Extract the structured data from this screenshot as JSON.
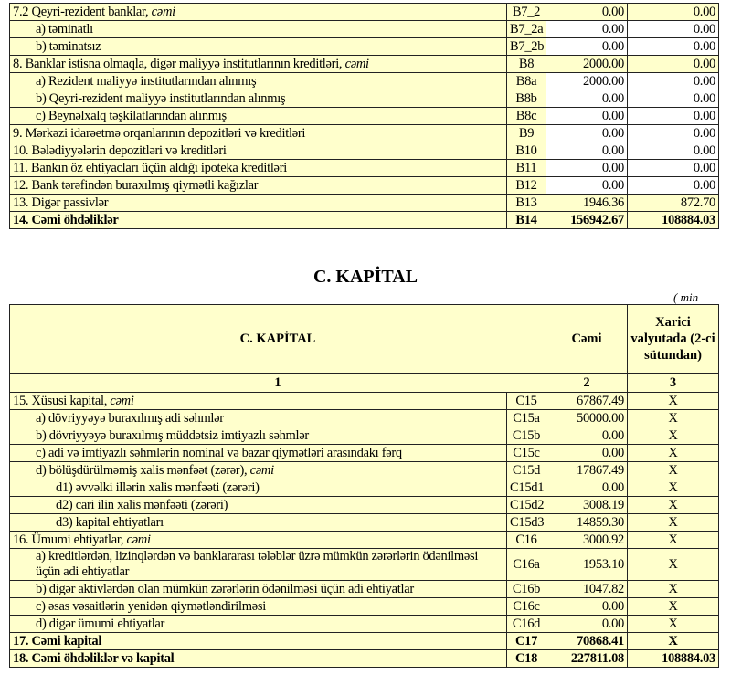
{
  "liabilities": {
    "rows": [
      {
        "label": "7.2 Qeyri-rezident banklar, ",
        "suffix": "cəmi",
        "code": "B7_2",
        "v1": "0.00",
        "v2": "0.00",
        "indent": 0,
        "white": false,
        "bold": false
      },
      {
        "label": "a) təminatlı",
        "code": "B7_2a",
        "v1": "0.00",
        "v2": "0.00",
        "indent": 1,
        "white": true,
        "bold": false
      },
      {
        "label": "b) təminatsız",
        "code": "B7_2b",
        "v1": "0.00",
        "v2": "0.00",
        "indent": 1,
        "white": true,
        "bold": false
      },
      {
        "label": "8. Banklar istisna olmaqla, digər maliyyə institutlarının kreditləri, ",
        "suffix": "cəmi",
        "code": "B8",
        "v1": "2000.00",
        "v2": "0.00",
        "indent": 0,
        "white": false,
        "bold": false
      },
      {
        "label": "a) Rezident maliyyə institutlarından alınmış",
        "code": "B8a",
        "v1": "2000.00",
        "v2": "0.00",
        "indent": 1,
        "white": true,
        "bold": false
      },
      {
        "label": "b) Qeyri-rezident maliyyə institutlarından alınmış",
        "code": "B8b",
        "v1": "0.00",
        "v2": "0.00",
        "indent": 1,
        "white": true,
        "bold": false
      },
      {
        "label": "c) Beynəlxalq təşkilatlarından alınmış",
        "code": "B8c",
        "v1": "0.00",
        "v2": "0.00",
        "indent": 1,
        "white": true,
        "bold": false
      },
      {
        "label": "9. Mərkəzi idarəetmə orqanlarının depozitləri və kreditləri",
        "code": "B9",
        "v1": "0.00",
        "v2": "0.00",
        "indent": 0,
        "white": true,
        "bold": false
      },
      {
        "label": "10. Bələdiyyələrin depozitləri və kreditləri",
        "code": "B10",
        "v1": "0.00",
        "v2": "0.00",
        "indent": 0,
        "white": true,
        "bold": false
      },
      {
        "label": "11. Bankın öz ehtiyacları üçün aldığı ipoteka kreditləri",
        "code": "B11",
        "v1": "0.00",
        "v2": "0.00",
        "indent": 0,
        "white": true,
        "bold": false
      },
      {
        "label": "12. Bank tərəfindən buraxılmış qiymətli kağızlar",
        "code": "B12",
        "v1": "0.00",
        "v2": "0.00",
        "indent": 0,
        "white": true,
        "bold": false
      },
      {
        "label": "13. Digər passivlər",
        "code": "B13",
        "v1": "1946.36",
        "v2": "872.70",
        "indent": 0,
        "white": false,
        "bold": false
      },
      {
        "label": "14. Cəmi öhdəliklər",
        "code": "B14",
        "v1": "156942.67",
        "v2": "108884.03",
        "indent": 0,
        "white": false,
        "bold": true
      }
    ]
  },
  "capital": {
    "section_title": "C. KAPİTAL",
    "unit_note": "( min",
    "header": {
      "col1": "C. KAPİTAL",
      "col2": "Cəmi",
      "col3": "Xarici valyutada (2-ci sütundan)",
      "num1": "1",
      "num2": "2",
      "num3": "3"
    },
    "rows": [
      {
        "label": "15. Xüsusi kapital, ",
        "suffix": "cəmi",
        "code": "C15",
        "v1": "67867.49",
        "v2": "X",
        "indent": 0,
        "bold": false
      },
      {
        "label": "a) dövriyyəyə buraxılmış adi səhmlər",
        "code": "C15a",
        "v1": "50000.00",
        "v2": "X",
        "indent": 1,
        "bold": false
      },
      {
        "label": "b) dövriyyəyə buraxılmış müddətsiz imtiyazlı səhmlər",
        "code": "C15b",
        "v1": "0.00",
        "v2": "X",
        "indent": 1,
        "bold": false
      },
      {
        "label": "c) adi və imtiyazlı səhmlərin nominal və bazar qiymətləri arasındakı fərq",
        "code": "C15c",
        "v1": "0.00",
        "v2": "X",
        "indent": 1,
        "bold": false
      },
      {
        "label": "d) bölüşdürülməmiş xalis mənfəət (zərər), ",
        "suffix": "cəmi",
        "code": "C15d",
        "v1": "17867.49",
        "v2": "X",
        "indent": 1,
        "bold": false
      },
      {
        "label": "d1) əvvəlki illərin xalis mənfəəti (zərəri)",
        "code": "C15d1",
        "v1": "0.00",
        "v2": "X",
        "indent": 2,
        "bold": false
      },
      {
        "label": "d2) cari ilin xalis mənfəəti (zərəri)",
        "code": "C15d2",
        "v1": "3008.19",
        "v2": "X",
        "indent": 2,
        "bold": false
      },
      {
        "label": "d3) kapital ehtiyatları",
        "code": "C15d3",
        "v1": "14859.30",
        "v2": "X",
        "indent": 2,
        "bold": false
      },
      {
        "label": "16. Ümumi ehtiyatlar, ",
        "suffix": "cəmi",
        "code": "C16",
        "v1": "3000.92",
        "v2": "X",
        "indent": 0,
        "bold": false
      },
      {
        "label": "a) kreditlərdən, lizinqlərdən və banklararası  tələblər üzrə mümkün zərərlərin ödənilməsi üçün adi ehtiyatlar",
        "code": "C16a",
        "v1": "1953.10",
        "v2": "X",
        "indent": 1,
        "bold": false,
        "wrap": true
      },
      {
        "label": "b) digər aktivlərdən olan mümkün zərərlərin ödənilməsi üçün adi ehtiyatlar",
        "code": "C16b",
        "v1": "1047.82",
        "v2": "X",
        "indent": 1,
        "bold": false
      },
      {
        "label": "c) əsas vəsaitlərin yenidən qiymətləndirilməsi",
        "code": "C16c",
        "v1": "0.00",
        "v2": "X",
        "indent": 1,
        "bold": false
      },
      {
        "label": "d) digər ümumi ehtiyatlar",
        "code": "C16d",
        "v1": "0.00",
        "v2": "X",
        "indent": 1,
        "bold": false
      },
      {
        "label": "17. Cəmi kapital",
        "code": "C17",
        "v1": "70868.41",
        "v2": "X",
        "indent": 0,
        "bold": true
      },
      {
        "label": "18. Cəmi öhdəliklər və kapital",
        "code": "C18",
        "v1": "227811.08",
        "v2": "108884.03",
        "indent": 0,
        "bold": true
      }
    ]
  }
}
